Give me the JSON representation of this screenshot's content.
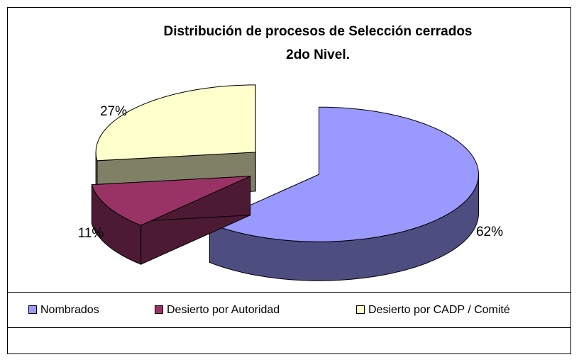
{
  "chart_data": {
    "type": "pie",
    "title": [
      "Distribución de procesos de Selección cerrados",
      "2do Nivel."
    ],
    "categories": [
      "Nombrados",
      "Desierto por Autoridad",
      "Desierto por CADP / Comité"
    ],
    "values": [
      62,
      11,
      27
    ],
    "value_labels": [
      "62%",
      "11%",
      "27%"
    ],
    "colors": [
      "#9999ff",
      "#993366",
      "#ffffcc"
    ],
    "legend": "bottom"
  }
}
